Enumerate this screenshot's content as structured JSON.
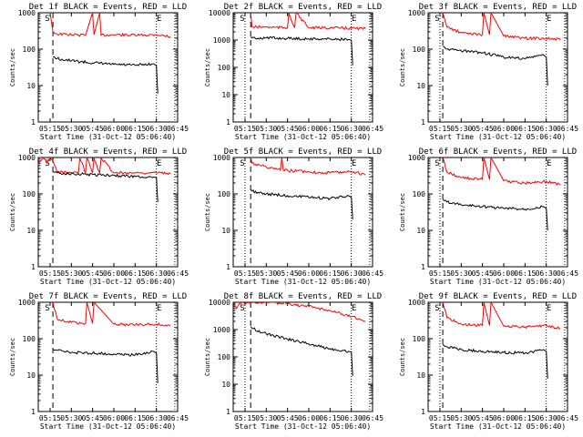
{
  "chart_data": [
    {
      "type": "line",
      "title": "Det 1f BLACK = Events, RED = LLD",
      "xlabel": "Start Time (31-Oct-12 05:06:40)",
      "ylabel": "Counts/sec",
      "xticks": [
        "05:15",
        "05:30",
        "05:45",
        "06:00",
        "06:15",
        "06:30",
        "06:45"
      ],
      "yticks": [
        "1",
        "10",
        "100",
        "1000"
      ],
      "yscale": "log",
      "ylim": [
        1,
        1000
      ],
      "xlim": [
        "05:06:40",
        "06:45"
      ],
      "markers": {
        "S": "05:15",
        "E": "06:30"
      },
      "vlines": {
        "dashed": "05:17",
        "dotted": [
          "06:30",
          "06:43"
        ]
      },
      "series": [
        {
          "color": "#ff0000",
          "x": [
            "05:15",
            "05:17",
            "05:20",
            "05:30",
            "05:40",
            "05:45",
            "05:46",
            "05:50",
            "05:51",
            "06:00",
            "06:15",
            "06:30",
            "06:40"
          ],
          "y": [
            1000,
            300,
            260,
            250,
            240,
            1000,
            250,
            1000,
            240,
            250,
            240,
            250,
            220
          ]
        },
        {
          "color": "#000000",
          "x": [
            "05:17",
            "05:20",
            "05:30",
            "05:45",
            "06:00",
            "06:15",
            "06:28",
            "06:30",
            "06:31"
          ],
          "y": [
            60,
            55,
            48,
            42,
            38,
            36,
            40,
            35,
            6
          ]
        }
      ]
    },
    {
      "type": "line",
      "title": "Det 2f BLACK = Events, RED = LLD",
      "xlabel": "Start Time (31-Oct-12 05:06:40)",
      "ylabel": "Counts/sec",
      "xticks": [
        "05:15",
        "05:30",
        "05:45",
        "06:00",
        "06:15",
        "06:30",
        "06:45"
      ],
      "yticks": [
        "1",
        "10",
        "100",
        "1000",
        "10000"
      ],
      "yscale": "log",
      "ylim": [
        1,
        10000
      ],
      "xlim": [
        "05:06:40",
        "06:45"
      ],
      "markers": {
        "S": "05:15",
        "E": "06:30"
      },
      "vlines": {
        "dashed": "05:19",
        "dotted": [
          "05:15",
          "06:30",
          "06:43"
        ]
      },
      "series": [
        {
          "color": "#ff0000",
          "x": [
            "05:19",
            "05:20",
            "05:30",
            "05:45",
            "05:46",
            "05:50",
            "05:51",
            "06:00",
            "06:15",
            "06:30",
            "06:40"
          ],
          "y": [
            10000,
            3000,
            3000,
            2800,
            10000,
            2800,
            10000,
            2800,
            2800,
            2700,
            2600
          ]
        },
        {
          "color": "#000000",
          "x": [
            "05:19",
            "05:20",
            "05:30",
            "05:45",
            "06:00",
            "06:15",
            "06:28",
            "06:30",
            "06:31"
          ],
          "y": [
            1300,
            1200,
            1200,
            1150,
            1100,
            1100,
            1050,
            1000,
            120
          ]
        }
      ]
    },
    {
      "type": "line",
      "title": "Det 3f BLACK = Events, RED = LLD",
      "xlabel": "Start Time (31-Oct-12 05:06:40)",
      "ylabel": "Counts/sec",
      "xticks": [
        "05:15",
        "05:30",
        "05:45",
        "06:00",
        "06:15",
        "06:30",
        "06:45"
      ],
      "yticks": [
        "1",
        "10",
        "100",
        "1000"
      ],
      "yscale": "log",
      "ylim": [
        1,
        1000
      ],
      "xlim": [
        "05:06:40",
        "06:45"
      ],
      "markers": {
        "S": "05:15",
        "E": "06:30"
      },
      "vlines": {
        "dashed": "05:17",
        "dotted": [
          "05:15",
          "06:30",
          "06:43"
        ]
      },
      "series": [
        {
          "color": "#ff0000",
          "x": [
            "05:17",
            "05:20",
            "05:30",
            "05:45",
            "05:46",
            "05:50",
            "05:51",
            "06:00",
            "06:15",
            "06:30",
            "06:40"
          ],
          "y": [
            1000,
            400,
            280,
            250,
            1000,
            250,
            1000,
            230,
            200,
            200,
            180
          ]
        },
        {
          "color": "#000000",
          "x": [
            "05:17",
            "05:20",
            "05:30",
            "05:45",
            "06:00",
            "06:15",
            "06:28",
            "06:30",
            "06:31"
          ],
          "y": [
            120,
            100,
            90,
            80,
            60,
            55,
            70,
            60,
            10
          ]
        }
      ]
    },
    {
      "type": "line",
      "title": "Det 4f BLACK = Events, RED = LLD",
      "xlabel": "Start Time (31-Oct-12 05:06:40)",
      "ylabel": "Counts/sec",
      "xticks": [
        "05:15",
        "05:30",
        "05:45",
        "06:00",
        "06:15",
        "06:30",
        "06:45"
      ],
      "yticks": [
        "1",
        "10",
        "100",
        "1000"
      ],
      "yscale": "log",
      "ylim": [
        1,
        1000
      ],
      "xlim": [
        "05:06:40",
        "06:45"
      ],
      "markers": {
        "S": "05:15",
        "E": "06:30"
      },
      "vlines": {
        "dashed": "05:17",
        "dotted": [
          "06:30",
          "06:43"
        ]
      },
      "series": [
        {
          "color": "#ff0000",
          "x": [
            "05:07",
            "05:10",
            "05:13",
            "05:15",
            "05:17",
            "05:20",
            "05:30",
            "05:35",
            "05:36",
            "05:40",
            "05:41",
            "05:45",
            "05:46",
            "05:50",
            "05:51",
            "06:00",
            "06:15",
            "06:30",
            "06:40"
          ],
          "y": [
            700,
            1000,
            700,
            1000,
            800,
            400,
            380,
            380,
            1000,
            380,
            1000,
            380,
            1000,
            380,
            1000,
            380,
            380,
            380,
            360
          ]
        },
        {
          "color": "#000000",
          "x": [
            "05:17",
            "05:20",
            "05:30",
            "05:45",
            "06:00",
            "06:15",
            "06:28",
            "06:30",
            "06:31"
          ],
          "y": [
            400,
            380,
            360,
            340,
            320,
            300,
            290,
            280,
            60
          ]
        }
      ]
    },
    {
      "type": "line",
      "title": "Det 5f BLACK = Events, RED = LLD",
      "xlabel": "Start Time (31-Oct-12 05:06:40)",
      "ylabel": "Counts/sec",
      "xticks": [
        "05:15",
        "05:30",
        "05:45",
        "06:00",
        "06:15",
        "06:30",
        "06:45"
      ],
      "yticks": [
        "1",
        "10",
        "100",
        "1000"
      ],
      "yscale": "log",
      "ylim": [
        1,
        1000
      ],
      "xlim": [
        "05:06:40",
        "06:45"
      ],
      "markers": {
        "S": "05:15",
        "E": "06:30"
      },
      "vlines": {
        "dashed": "05:19",
        "dotted": [
          "05:15",
          "06:30",
          "06:43"
        ]
      },
      "series": [
        {
          "color": "#ff0000",
          "x": [
            "05:19",
            "05:20",
            "05:30",
            "05:40",
            "05:41",
            "05:42",
            "06:00",
            "06:15",
            "06:30",
            "06:40"
          ],
          "y": [
            1000,
            700,
            550,
            450,
            1000,
            450,
            400,
            380,
            420,
            330
          ]
        },
        {
          "color": "#000000",
          "x": [
            "05:19",
            "05:20",
            "05:30",
            "05:45",
            "06:00",
            "06:15",
            "06:28",
            "06:30",
            "06:31"
          ],
          "y": [
            130,
            120,
            100,
            90,
            80,
            75,
            90,
            80,
            20
          ]
        }
      ]
    },
    {
      "type": "line",
      "title": "Det 6f BLACK = Events, RED = LLD",
      "xlabel": "Start Time (31-Oct-12 05:06:40)",
      "ylabel": "Counts/sec",
      "xticks": [
        "05:15",
        "05:30",
        "05:45",
        "06:00",
        "06:15",
        "06:30",
        "06:45"
      ],
      "yticks": [
        "1",
        "10",
        "100",
        "1000"
      ],
      "yscale": "log",
      "ylim": [
        1,
        1000
      ],
      "xlim": [
        "05:06:40",
        "06:45"
      ],
      "markers": {
        "S": "05:15",
        "E": "06:30"
      },
      "vlines": {
        "dashed": "05:17",
        "dotted": [
          "05:15",
          "06:30",
          "06:43"
        ]
      },
      "series": [
        {
          "color": "#ff0000",
          "x": [
            "05:17",
            "05:20",
            "05:30",
            "05:45",
            "05:46",
            "05:50",
            "05:51",
            "06:00",
            "06:15",
            "06:30",
            "06:40"
          ],
          "y": [
            1000,
            400,
            280,
            250,
            1000,
            250,
            1000,
            230,
            200,
            220,
            180
          ]
        },
        {
          "color": "#000000",
          "x": [
            "05:17",
            "05:20",
            "05:30",
            "05:45",
            "06:00",
            "06:15",
            "06:28",
            "06:30",
            "06:31"
          ],
          "y": [
            70,
            60,
            50,
            45,
            40,
            38,
            45,
            40,
            10
          ]
        }
      ]
    },
    {
      "type": "line",
      "title": "Det 7f BLACK = Events, RED = LLD",
      "xlabel": "Start Time (31-Oct-12 05:06:40)",
      "ylabel": "Counts/sec",
      "xticks": [
        "05:15",
        "05:30",
        "05:45",
        "06:00",
        "06:15",
        "06:30",
        "06:45"
      ],
      "yticks": [
        "1",
        "10",
        "100",
        "1000"
      ],
      "yscale": "log",
      "ylim": [
        1,
        1000
      ],
      "xlim": [
        "05:06:40",
        "06:45"
      ],
      "markers": {
        "S": "05:15",
        "E": "06:30"
      },
      "vlines": {
        "dashed": "05:17",
        "dotted": [
          "06:30",
          "06:43"
        ]
      },
      "series": [
        {
          "color": "#ff0000",
          "x": [
            "05:17",
            "05:20",
            "05:30",
            "05:40",
            "05:41",
            "05:45",
            "05:46",
            "06:00",
            "06:15",
            "06:30",
            "06:40"
          ],
          "y": [
            1000,
            350,
            280,
            260,
            1000,
            260,
            1000,
            250,
            240,
            250,
            220
          ]
        },
        {
          "color": "#000000",
          "x": [
            "05:17",
            "05:20",
            "05:30",
            "05:45",
            "06:00",
            "06:15",
            "06:28",
            "06:30",
            "06:31"
          ],
          "y": [
            50,
            48,
            42,
            40,
            38,
            36,
            45,
            40,
            6
          ]
        }
      ]
    },
    {
      "type": "line",
      "title": "Det 8f BLACK = Events, RED = LLD",
      "xlabel": "Start Time (31-Oct-12 05:06:40)",
      "ylabel": "Counts/sec",
      "xticks": [
        "05:15",
        "05:30",
        "05:45",
        "06:00",
        "06:15",
        "06:30",
        "06:45"
      ],
      "yticks": [
        "1",
        "10",
        "100",
        "1000",
        "10000"
      ],
      "yscale": "log",
      "ylim": [
        1,
        10000
      ],
      "xlim": [
        "05:06:40",
        "06:45"
      ],
      "markers": {
        "S": "05:15",
        "E": "06:30"
      },
      "vlines": {
        "dashed": "05:19",
        "dotted": [
          "05:15",
          "06:30",
          "06:43"
        ]
      },
      "series": [
        {
          "color": "#ff0000",
          "x": [
            "05:07",
            "05:09",
            "05:11",
            "05:19",
            "05:30",
            "05:45",
            "06:00",
            "06:15",
            "06:30",
            "06:40"
          ],
          "y": [
            9000,
            6000,
            9000,
            10000,
            10000,
            9000,
            7000,
            5000,
            3000,
            2000
          ]
        },
        {
          "color": "#000000",
          "x": [
            "05:19",
            "05:20",
            "05:30",
            "05:45",
            "06:00",
            "06:15",
            "06:28",
            "06:30",
            "06:31"
          ],
          "y": [
            1300,
            1100,
            700,
            450,
            300,
            200,
            160,
            150,
            20
          ]
        }
      ]
    },
    {
      "type": "line",
      "title": "Det 9f BLACK = Events, RED = LLD",
      "xlabel": "Start Time (31-Oct-12 05:06:40)",
      "ylabel": "Counts/sec",
      "xticks": [
        "05:15",
        "05:30",
        "05:45",
        "06:00",
        "06:15",
        "06:30",
        "06:45"
      ],
      "yticks": [
        "1",
        "10",
        "100",
        "1000"
      ],
      "yscale": "log",
      "ylim": [
        1,
        1000
      ],
      "xlim": [
        "05:06:40",
        "06:45"
      ],
      "markers": {
        "S": "05:15",
        "E": "06:30"
      },
      "vlines": {
        "dashed": "05:17",
        "dotted": [
          "05:15",
          "06:30",
          "06:43"
        ]
      },
      "series": [
        {
          "color": "#ff0000",
          "x": [
            "05:17",
            "05:20",
            "05:30",
            "05:45",
            "05:46",
            "05:50",
            "05:51",
            "06:00",
            "06:15",
            "06:30",
            "06:40"
          ],
          "y": [
            1000,
            380,
            250,
            230,
            1000,
            230,
            1000,
            220,
            210,
            230,
            190
          ]
        },
        {
          "color": "#000000",
          "x": [
            "05:17",
            "05:20",
            "05:30",
            "05:45",
            "06:00",
            "06:15",
            "06:28",
            "06:30",
            "06:31"
          ],
          "y": [
            70,
            60,
            50,
            45,
            42,
            40,
            50,
            45,
            8
          ]
        }
      ]
    }
  ]
}
